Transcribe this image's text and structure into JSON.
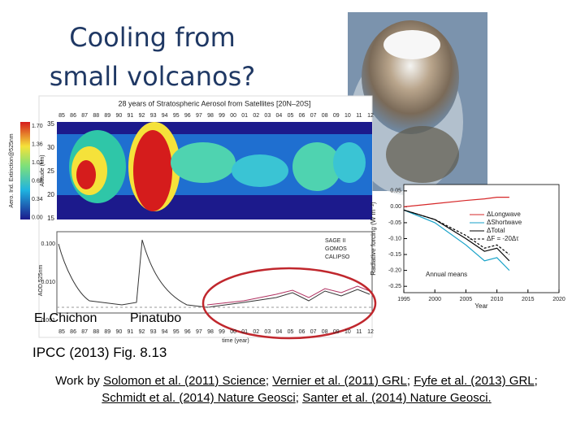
{
  "title": [
    "Cooling from",
    "small volcanos?"
  ],
  "left_figure": {
    "title": "28 years of Stratospheric Aerosol from Satellites [20N–20S]",
    "years": [
      "85",
      "86",
      "87",
      "88",
      "89",
      "90",
      "91",
      "92",
      "93",
      "94",
      "95",
      "96",
      "97",
      "98",
      "99",
      "00",
      "01",
      "02",
      "03",
      "04",
      "05",
      "06",
      "07",
      "08",
      "09",
      "10",
      "11",
      "12"
    ],
    "altitude_label": "Altitude (km)",
    "altitude_ticks": [
      "35",
      "30",
      "25",
      "20",
      "15"
    ],
    "colorbar_label": "Aero. Ind. Extinction@525nm",
    "colorbar_ticks": [
      "1.70",
      "1.36",
      "1.02",
      "0.68",
      "0.34",
      "0.00"
    ],
    "aod_label": "AOD 525nm",
    "aod_ticks": [
      "0.100",
      "0.010",
      "0.001"
    ],
    "legend": [
      "SAGE II",
      "GOMOS",
      "CALIPSO"
    ],
    "time_label": "time (year)"
  },
  "volcano_labels": [
    "El Chichon",
    "Pinatubo"
  ],
  "source": "IPCC (2013) Fig. 8.13",
  "right_chart": {
    "type": "line",
    "ylabel": "Radiative forcing (W m⁻²)",
    "xlabel": "Year",
    "annotation": "Annual means",
    "xlim": [
      1995,
      2020
    ],
    "xticks": [
      1995,
      2000,
      2005,
      2010,
      2015,
      2020
    ],
    "ylim": [
      -0.27,
      0.07
    ],
    "yticks": [
      {
        "value": 0.05,
        "label": "0.05"
      },
      {
        "value": 0,
        "label": "0.00"
      },
      {
        "value": -0.05,
        "label": "-0.05"
      },
      {
        "value": -0.1,
        "label": "-0.10"
      },
      {
        "value": -0.15,
        "label": "-0.15"
      },
      {
        "value": -0.2,
        "label": "-0.20"
      },
      {
        "value": -0.25,
        "label": "-0.25"
      }
    ],
    "x": [
      1995,
      2000,
      2005,
      2008,
      2010,
      2012
    ],
    "series": [
      {
        "name": "ΔLongwave",
        "color": "#d62728",
        "values": [
          0.0,
          0.01,
          0.02,
          0.025,
          0.03,
          0.03
        ]
      },
      {
        "name": "ΔShortwave",
        "color": "#17a2c8",
        "values": [
          -0.01,
          -0.05,
          -0.12,
          -0.17,
          -0.16,
          -0.2
        ]
      },
      {
        "name": "ΔTotal",
        "color": "#000000",
        "values": [
          -0.01,
          -0.04,
          -0.1,
          -0.14,
          -0.13,
          -0.17
        ]
      },
      {
        "name": "ΔF = -20Δτ",
        "color": "#000000",
        "values": [
          -0.01,
          -0.04,
          -0.09,
          -0.13,
          -0.12,
          -0.15
        ]
      }
    ]
  },
  "citation": {
    "lead": "Work by ",
    "sep": "; ",
    "links": [
      "Solomon et al. (2011) Science",
      "Vernier et al. (2011) GRL",
      "Fyfe et al. (2013) GRL",
      "Schmidt et al. (2014) Nature Geosci",
      "Santer et al. (2014) Nature Geosci."
    ]
  }
}
